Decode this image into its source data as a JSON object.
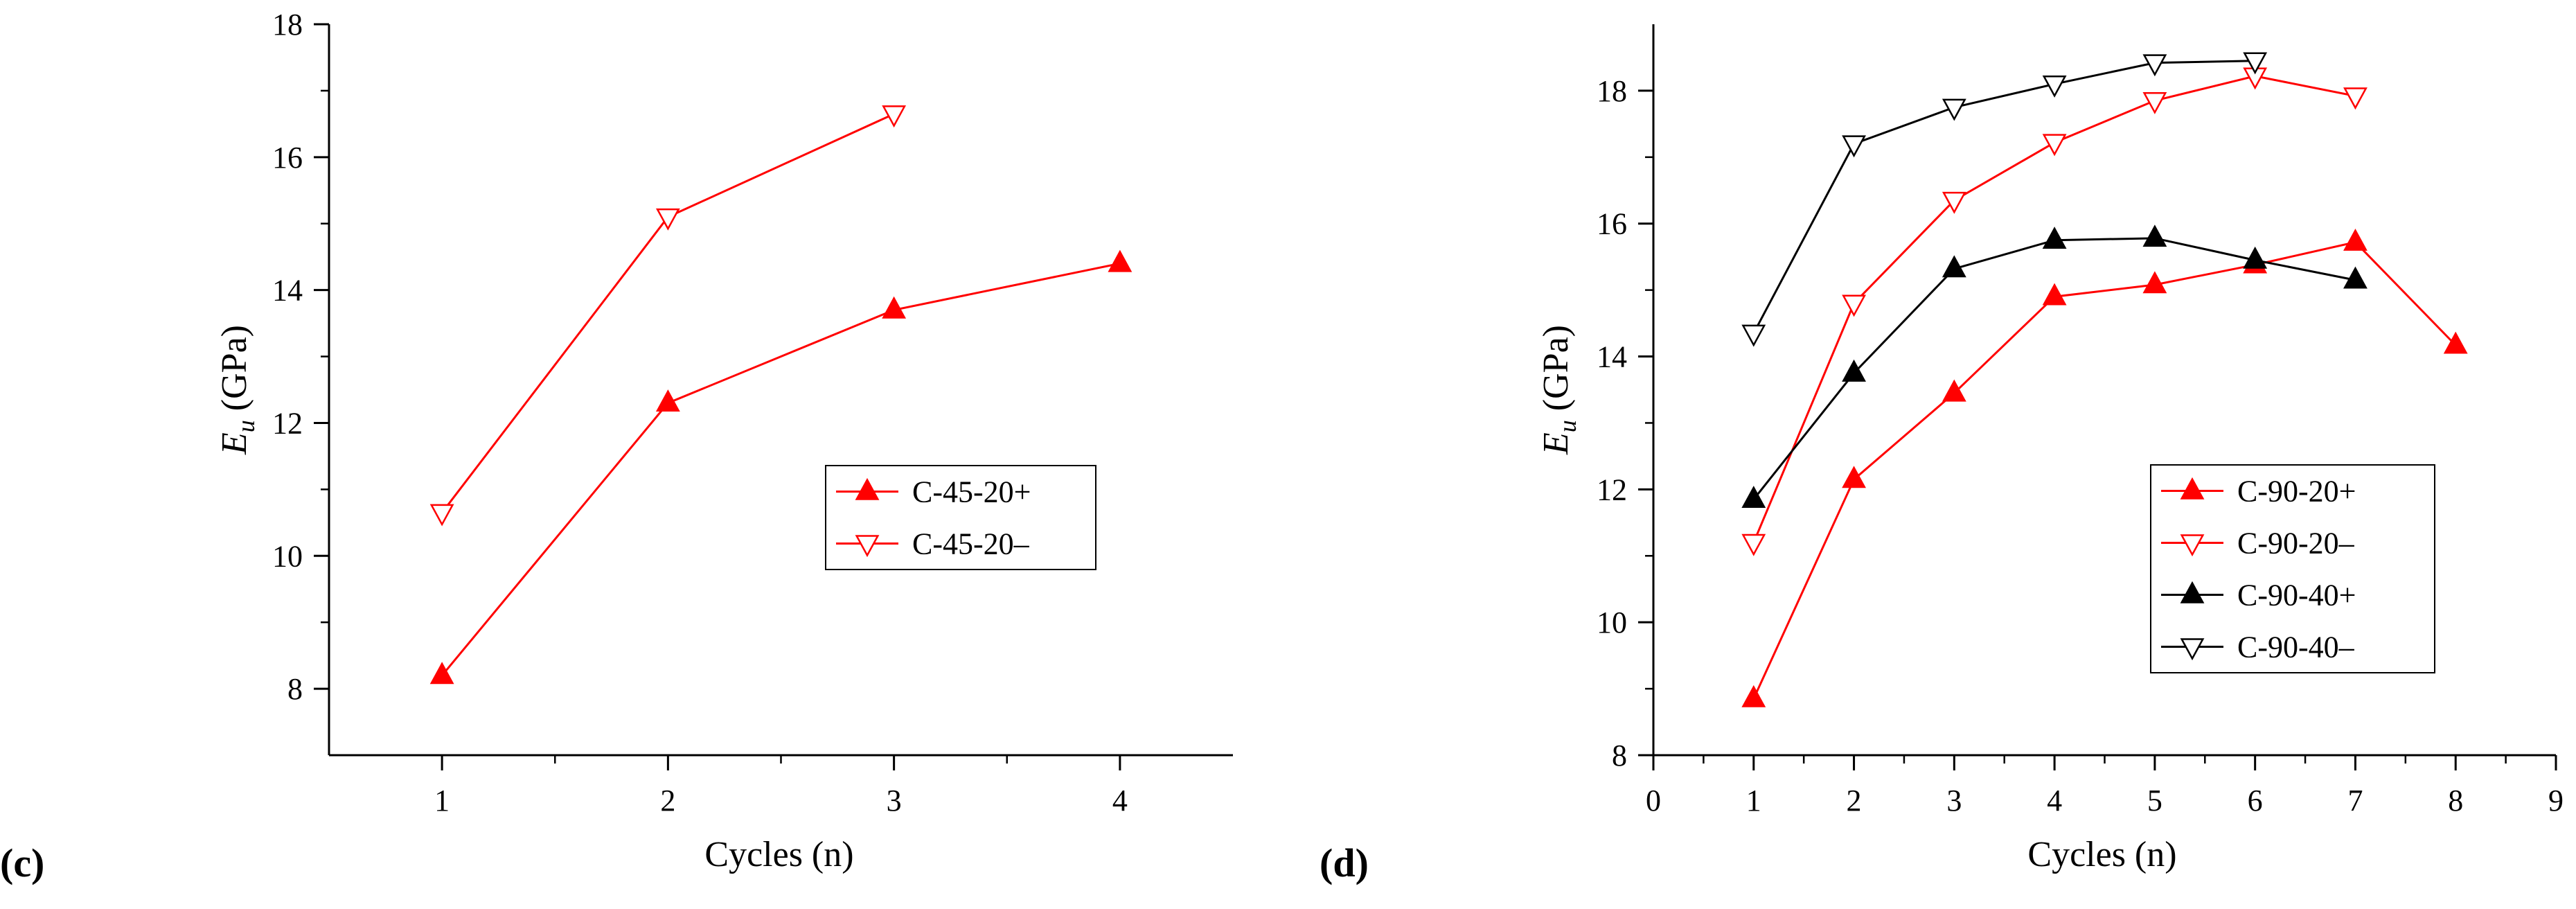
{
  "chart_data": [
    {
      "type": "line",
      "panel_label": "(c)",
      "panel_letter": "c",
      "xlabel": "Cycles (n)",
      "ylabel_main": "E",
      "ylabel_sub": "u",
      "ylabel_rest": " (GPa)",
      "xlim": [
        0.5,
        4.5
      ],
      "ylim": [
        7,
        18
      ],
      "xticks": [
        1,
        2,
        3,
        4
      ],
      "yticks": [
        8,
        10,
        12,
        14,
        16,
        18
      ],
      "legend_position": "center-right",
      "series": [
        {
          "name": "C-45-20+",
          "color": "#ff0000",
          "marker": "filled-up-triangle",
          "x": [
            1,
            2,
            3,
            4
          ],
          "y": [
            8.2,
            12.3,
            13.7,
            14.4
          ]
        },
        {
          "name": "C-45-20–",
          "color": "#ff0000",
          "marker": "open-down-triangle",
          "x": [
            1,
            2,
            3
          ],
          "y": [
            10.65,
            15.1,
            16.65
          ]
        }
      ]
    },
    {
      "type": "line",
      "panel_label": "(d)",
      "panel_letter": "d",
      "xlabel": "Cycles (n)",
      "ylabel_main": "E",
      "ylabel_sub": "u",
      "ylabel_rest": " (GPa)",
      "xlim": [
        0,
        9
      ],
      "ylim": [
        8,
        19
      ],
      "xticks": [
        0,
        1,
        2,
        3,
        4,
        5,
        6,
        7,
        8,
        9
      ],
      "yticks": [
        8,
        10,
        12,
        14,
        16,
        18
      ],
      "legend_position": "lower-right",
      "series": [
        {
          "name": "C-90-20+",
          "color": "#ff0000",
          "marker": "filled-up-triangle",
          "x": [
            1,
            2,
            3,
            4,
            5,
            6,
            7,
            8
          ],
          "y": [
            8.85,
            12.15,
            13.45,
            14.9,
            15.08,
            15.38,
            15.72,
            14.17
          ]
        },
        {
          "name": "C-90-20–",
          "color": "#ff0000",
          "marker": "open-down-triangle",
          "x": [
            1,
            2,
            3,
            4,
            5,
            6,
            7
          ],
          "y": [
            11.2,
            14.8,
            16.35,
            17.22,
            17.85,
            18.22,
            17.92
          ]
        },
        {
          "name": "C-90-40+",
          "color": "#000000",
          "marker": "filled-up-triangle",
          "x": [
            1,
            2,
            3,
            4,
            5,
            6,
            7
          ],
          "y": [
            11.85,
            13.75,
            15.32,
            15.75,
            15.78,
            15.45,
            15.15
          ]
        },
        {
          "name": "C-90-40–",
          "color": "#000000",
          "marker": "open-down-triangle",
          "x": [
            1,
            2,
            3,
            4,
            5,
            6
          ],
          "y": [
            14.35,
            17.2,
            17.75,
            18.1,
            18.42,
            18.45
          ]
        }
      ]
    }
  ]
}
